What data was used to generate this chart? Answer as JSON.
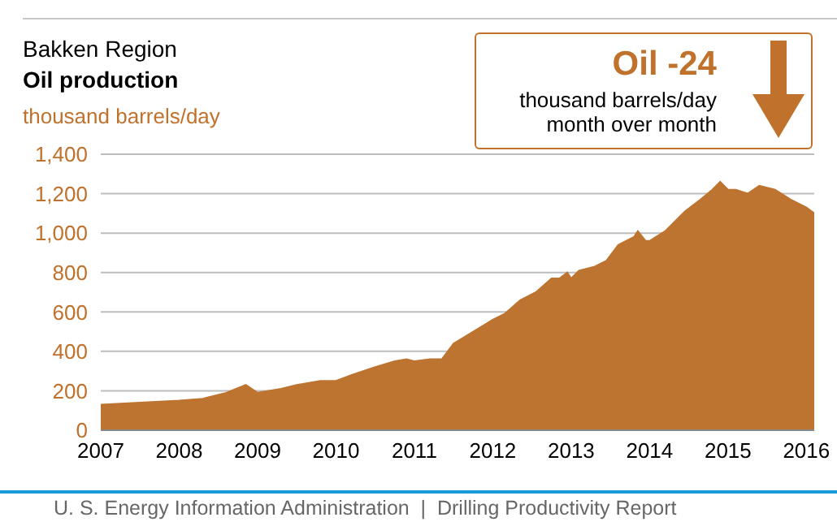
{
  "chart_data": {
    "type": "area",
    "title": "Bakken Region",
    "subtitle": "Oil production",
    "ylabel": "thousand barrels/day",
    "annotations": [
      "Oil -24",
      "thousand barrels/day",
      "month over month",
      "U. S. Energy Information Administration  |  Drilling Productivity Report"
    ],
    "x": [
      2007.0,
      2007.5,
      2008.0,
      2008.3,
      2008.6,
      2008.85,
      2009.0,
      2009.3,
      2009.5,
      2009.8,
      2010.0,
      2010.2,
      2010.5,
      2010.75,
      2010.9,
      2011.0,
      2011.2,
      2011.35,
      2011.5,
      2011.75,
      2012.0,
      2012.15,
      2012.35,
      2012.55,
      2012.75,
      2012.85,
      2012.95,
      2013.0,
      2013.1,
      2013.3,
      2013.45,
      2013.6,
      2013.8,
      2013.85,
      2013.95,
      2014.0,
      2014.2,
      2014.45,
      2014.65,
      2014.8,
      2014.9,
      2015.0,
      2015.1,
      2015.25,
      2015.4,
      2015.6,
      2015.8,
      2016.0,
      2016.1
    ],
    "series": [
      {
        "color": "#bd7430",
        "values": [
          130,
          140,
          150,
          160,
          190,
          230,
          190,
          210,
          230,
          250,
          250,
          280,
          320,
          350,
          360,
          350,
          360,
          360,
          440,
          500,
          560,
          590,
          660,
          700,
          770,
          770,
          800,
          770,
          810,
          830,
          860,
          940,
          980,
          1010,
          960,
          960,
          1010,
          1110,
          1170,
          1220,
          1260,
          1220,
          1220,
          1200,
          1240,
          1220,
          1170,
          1130,
          1100
        ]
      }
    ],
    "xlim": [
      2007,
      2016.1
    ],
    "xticks": [
      2007,
      2008,
      2009,
      2010,
      2011,
      2012,
      2013,
      2014,
      2015,
      2016
    ],
    "ylim": [
      0,
      1400
    ],
    "yticks": [
      0,
      200,
      400,
      600,
      800,
      {
        "value": 1000,
        "label": "1,000"
      },
      {
        "value": 1200,
        "label": "1,200"
      },
      {
        "value": 1400,
        "label": "1,400"
      }
    ],
    "grid": "y"
  }
}
